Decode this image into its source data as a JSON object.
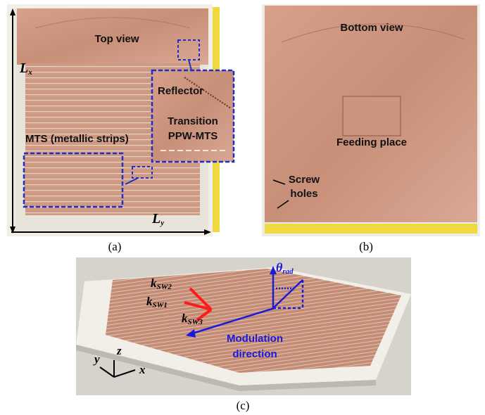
{
  "panel_a": {
    "title": "Top view",
    "lx": {
      "symbol": "L",
      "subscript": "x"
    },
    "ly": {
      "symbol": "L",
      "subscript": "y"
    },
    "reflector": "Reflector",
    "transition": [
      "Transition",
      "PPW-MTS"
    ],
    "mts": "MTS (metallic strips)",
    "caption": "(a)"
  },
  "panel_b": {
    "title": "Bottom view",
    "feeding": "Feeding place",
    "screw": [
      "Screw",
      "holes"
    ],
    "caption": "(b)"
  },
  "panel_c": {
    "k_sw2": {
      "symbol": "k",
      "subscript": "SW2"
    },
    "k_sw1": {
      "symbol": "k",
      "subscript": "SW1"
    },
    "k_sw3": {
      "symbol": "k",
      "subscript": "SW3"
    },
    "theta": {
      "symbol": "θ",
      "subscript": "rad"
    },
    "modulation": [
      "Modulation",
      "direction"
    ],
    "axes": {
      "y": "y",
      "z": "z",
      "x": "x"
    },
    "caption": "(c)"
  }
}
